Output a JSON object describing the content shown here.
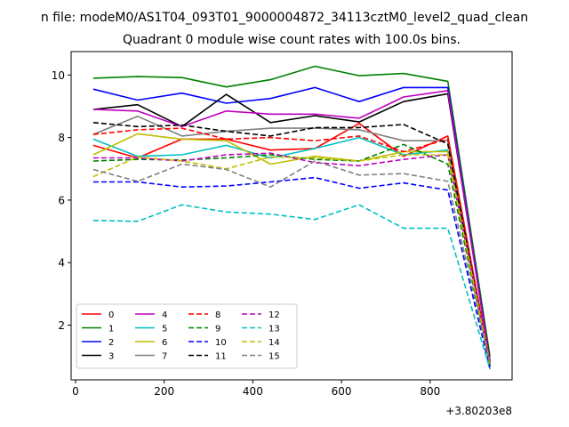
{
  "chart_data": {
    "type": "line",
    "suptitle": "n file: modeM0/AS1T04_093T01_9000004872_34113cztM0_level2_quad_clean",
    "title": "Quadrant 0 module wise count rates with 100.0s bins.",
    "xlabel": "",
    "ylabel": "",
    "x_offset_label": "+3.80203e8",
    "xlim": [
      -10,
      985
    ],
    "ylim": [
      0.25,
      10.75
    ],
    "xticks": [
      0,
      200,
      400,
      600,
      800
    ],
    "yticks": [
      2,
      4,
      6,
      8,
      10
    ],
    "x": [
      40,
      140,
      240,
      340,
      440,
      540,
      640,
      740,
      840,
      935
    ],
    "legend": {
      "position": "lower-left",
      "ncol": 4
    },
    "series": [
      {
        "name": "0",
        "color": "#ff0000",
        "dash": "solid",
        "values": [
          7.75,
          7.35,
          7.95,
          7.95,
          7.6,
          7.65,
          8.45,
          7.4,
          8.05,
          0.8
        ]
      },
      {
        "name": "1",
        "color": "#008000",
        "dash": "solid",
        "values": [
          9.9,
          9.95,
          9.92,
          9.62,
          9.85,
          10.28,
          9.98,
          10.05,
          9.8,
          1.0
        ]
      },
      {
        "name": "2",
        "color": "#0000ff",
        "dash": "solid",
        "values": [
          9.55,
          9.2,
          9.42,
          9.1,
          9.25,
          9.6,
          9.15,
          9.6,
          9.6,
          0.85
        ]
      },
      {
        "name": "3",
        "color": "#000000",
        "dash": "solid",
        "values": [
          8.9,
          9.05,
          8.35,
          9.38,
          8.48,
          8.7,
          8.5,
          9.15,
          9.4,
          0.85
        ]
      },
      {
        "name": "4",
        "color": "#bf00bf",
        "dash": "solid",
        "values": [
          8.9,
          8.85,
          8.35,
          8.85,
          8.75,
          8.75,
          8.62,
          9.3,
          9.5,
          0.8
        ]
      },
      {
        "name": "5",
        "color": "#00bfbf",
        "dash": "solid",
        "values": [
          7.95,
          7.4,
          7.45,
          7.75,
          7.35,
          7.65,
          8.0,
          7.45,
          7.6,
          0.7
        ]
      },
      {
        "name": "6",
        "color": "#bfbf00",
        "dash": "solid",
        "values": [
          7.45,
          8.12,
          7.95,
          7.9,
          7.15,
          7.4,
          7.25,
          7.55,
          7.55,
          0.75
        ]
      },
      {
        "name": "7",
        "color": "#808080",
        "dash": "solid",
        "values": [
          8.1,
          8.68,
          8.05,
          8.2,
          8.3,
          8.3,
          8.25,
          7.9,
          7.9,
          0.8
        ]
      },
      {
        "name": "8",
        "color": "#ff0000",
        "dash": "dashed",
        "values": [
          8.1,
          8.25,
          8.3,
          7.95,
          8.0,
          7.9,
          8.05,
          7.55,
          7.95,
          0.8
        ]
      },
      {
        "name": "9",
        "color": "#008000",
        "dash": "dashed",
        "values": [
          7.25,
          7.3,
          7.28,
          7.35,
          7.45,
          7.3,
          7.25,
          7.78,
          7.15,
          0.75
        ]
      },
      {
        "name": "10",
        "color": "#0000ff",
        "dash": "dashed",
        "values": [
          6.58,
          6.58,
          6.42,
          6.45,
          6.58,
          6.72,
          6.38,
          6.55,
          6.32,
          0.6
        ]
      },
      {
        "name": "11",
        "color": "#000000",
        "dash": "dashed",
        "values": [
          8.48,
          8.35,
          8.4,
          8.2,
          8.05,
          8.32,
          8.32,
          8.42,
          7.8,
          0.7
        ]
      },
      {
        "name": "12",
        "color": "#bf00bf",
        "dash": "dashed",
        "values": [
          7.35,
          7.35,
          7.25,
          7.45,
          7.5,
          7.2,
          7.1,
          7.3,
          7.45,
          0.8
        ]
      },
      {
        "name": "13",
        "color": "#00bfbf",
        "dash": "dashed",
        "values": [
          5.35,
          5.32,
          5.85,
          5.62,
          5.55,
          5.38,
          5.85,
          5.1,
          5.1,
          0.6
        ]
      },
      {
        "name": "14",
        "color": "#bfbf00",
        "dash": "dashed",
        "values": [
          6.75,
          7.38,
          7.25,
          7.0,
          7.38,
          7.35,
          7.25,
          7.45,
          7.45,
          0.75
        ]
      },
      {
        "name": "15",
        "color": "#808080",
        "dash": "dashed",
        "values": [
          6.98,
          6.6,
          7.15,
          6.98,
          6.42,
          7.25,
          6.8,
          6.85,
          6.6,
          0.75
        ]
      }
    ]
  }
}
